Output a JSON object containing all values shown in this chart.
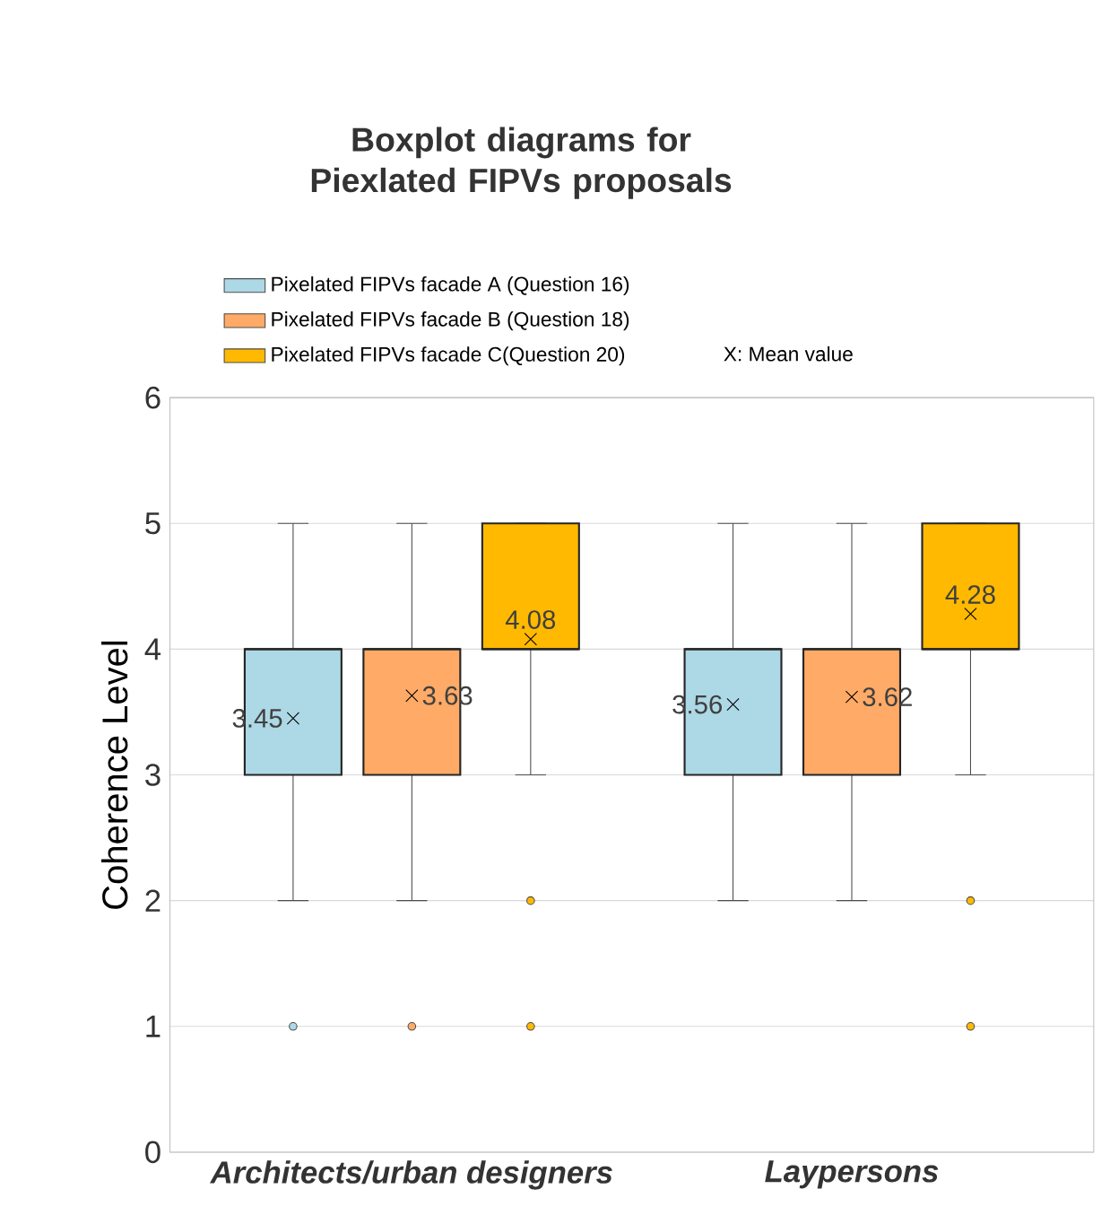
{
  "chart_data": {
    "type": "box",
    "title": "Boxplot diagrams for Piexlated FIPVs proposals",
    "ylabel": "Coherence Level",
    "categories": [
      "Architects/urban designers",
      "Laypersons"
    ],
    "series": [
      {
        "name": "Pixelated FIPVs facade A (Question 16)",
        "color": "#add8e6",
        "boxes": [
          {
            "low": 2,
            "q1": 3,
            "median": 4,
            "q3": 4,
            "high": 5,
            "mean": 3.45,
            "outliers": [
              1
            ]
          },
          {
            "low": 2,
            "q1": 3,
            "median": 4,
            "q3": 4,
            "high": 5,
            "mean": 3.56
          }
        ]
      },
      {
        "name": "Pixelated FIPVs facade B (Question 18)",
        "color": "#ffaa66",
        "boxes": [
          {
            "low": 2,
            "q1": 3,
            "median": 4,
            "q3": 4,
            "high": 5,
            "mean": 3.63,
            "outliers": [
              1
            ]
          },
          {
            "low": 2,
            "q1": 3,
            "median": 4,
            "q3": 4,
            "high": 5,
            "mean": 3.62
          }
        ]
      },
      {
        "name": "Pixelated FIPVs facade C(Question 20)",
        "color": "#ffb900",
        "boxes": [
          {
            "low": 3,
            "q1": 4,
            "median": 4,
            "q3": 5,
            "high": 5,
            "mean": 4.08,
            "outliers": [
              2,
              1
            ]
          },
          {
            "low": 3,
            "q1": 4,
            "median": 4,
            "q3": 5,
            "high": 5,
            "mean": 4.28,
            "outliers": [
              2,
              1
            ]
          }
        ]
      }
    ],
    "annotations": [
      "X: Mean value",
      "3.45",
      "3.63",
      "4.08",
      "3.56",
      "3.62",
      "4.28"
    ],
    "ylim": [
      0,
      6
    ],
    "yticks": [
      0,
      1,
      2,
      3,
      4,
      5,
      6
    ],
    "grid": "y",
    "legend": "top",
    "marker": "cross"
  }
}
